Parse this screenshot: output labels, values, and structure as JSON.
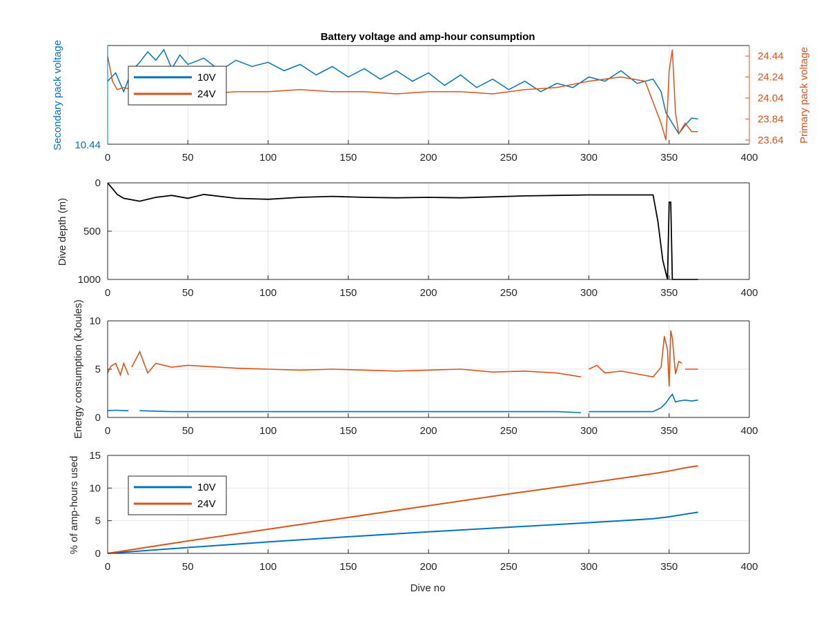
{
  "colors": {
    "blue": "#0072BD",
    "orange": "#D95319",
    "black": "#000000",
    "grid": "#e6e6e6"
  },
  "chart_data": [
    {
      "type": "line",
      "title": "Battery voltage and amp-hour consumption",
      "xlabel": "",
      "ylabel_left": "Secondary pack voltage",
      "ylabel_right": "Primary pack voltage",
      "xlim": [
        0,
        400
      ],
      "xticks": [
        "0",
        "50",
        "100",
        "150",
        "200",
        "250",
        "300",
        "350",
        "400"
      ],
      "yticks_left": [
        "10.44"
      ],
      "yticks_right": [
        "23.64",
        "23.84",
        "24.04",
        "24.24",
        "24.44"
      ],
      "ylim_right": [
        23.6,
        24.54
      ],
      "legend": {
        "position": "top-left",
        "entries": [
          "10V",
          "24V"
        ]
      },
      "series": [
        {
          "name": "10V",
          "axis": "left",
          "x": [
            0,
            5,
            10,
            15,
            20,
            25,
            30,
            35,
            40,
            45,
            50,
            60,
            70,
            80,
            90,
            100,
            110,
            120,
            130,
            140,
            150,
            160,
            170,
            180,
            190,
            200,
            210,
            220,
            230,
            240,
            250,
            260,
            270,
            280,
            290,
            300,
            310,
            320,
            330,
            340,
            345,
            348,
            352,
            356,
            360,
            364,
            368
          ],
          "y": [
            24.2,
            24.28,
            24.1,
            24.3,
            24.38,
            24.48,
            24.4,
            24.5,
            24.32,
            24.45,
            24.36,
            24.42,
            24.3,
            24.4,
            24.34,
            24.38,
            24.3,
            24.36,
            24.26,
            24.34,
            24.24,
            24.32,
            24.22,
            24.3,
            24.2,
            24.28,
            24.16,
            24.26,
            24.14,
            24.22,
            24.12,
            24.2,
            24.1,
            24.18,
            24.14,
            24.24,
            24.2,
            24.3,
            24.18,
            24.22,
            24.1,
            23.9,
            23.8,
            23.7,
            23.78,
            23.85,
            23.84
          ]
        },
        {
          "name": "24V",
          "axis": "right",
          "x": [
            0,
            3,
            6,
            10,
            20,
            40,
            60,
            80,
            100,
            120,
            140,
            160,
            180,
            200,
            220,
            240,
            260,
            280,
            300,
            320,
            335,
            340,
            345,
            348,
            350,
            352,
            354,
            356,
            360,
            364,
            368
          ],
          "y": [
            24.44,
            24.2,
            24.12,
            24.14,
            24.1,
            24.1,
            24.08,
            24.1,
            24.1,
            24.12,
            24.1,
            24.1,
            24.08,
            24.1,
            24.1,
            24.08,
            24.12,
            24.14,
            24.2,
            24.24,
            24.2,
            24.0,
            23.8,
            23.64,
            24.3,
            24.5,
            23.9,
            23.7,
            23.8,
            23.72,
            23.72
          ]
        }
      ]
    },
    {
      "type": "line",
      "title": "",
      "xlabel": "",
      "ylabel": "Dive depth (m)",
      "xlim": [
        0,
        400
      ],
      "ylim": [
        0,
        1000
      ],
      "y_reversed": true,
      "xticks": [
        "0",
        "50",
        "100",
        "150",
        "200",
        "250",
        "300",
        "350",
        "400"
      ],
      "yticks": [
        "0",
        "500",
        "1000"
      ],
      "series": [
        {
          "name": "",
          "x": [
            0,
            3,
            6,
            10,
            20,
            30,
            40,
            50,
            60,
            80,
            100,
            120,
            140,
            160,
            180,
            200,
            220,
            240,
            260,
            280,
            300,
            320,
            340,
            343,
            346,
            349,
            350,
            351,
            352,
            353,
            354,
            356,
            360,
            368
          ],
          "y": [
            0,
            60,
            120,
            160,
            190,
            150,
            130,
            160,
            120,
            160,
            170,
            150,
            140,
            150,
            155,
            150,
            155,
            145,
            135,
            130,
            125,
            125,
            125,
            400,
            800,
            1000,
            200,
            200,
            1000,
            1000,
            1000,
            1000,
            1000,
            1000
          ]
        }
      ]
    },
    {
      "type": "line",
      "title": "",
      "xlabel": "",
      "ylabel": "Energy consumption (kJoules)",
      "xlim": [
        0,
        400
      ],
      "ylim": [
        0,
        10
      ],
      "xticks": [
        "0",
        "50",
        "100",
        "150",
        "200",
        "250",
        "300",
        "350",
        "400"
      ],
      "yticks": [
        "0",
        "5",
        "10"
      ],
      "series": [
        {
          "name": "",
          "color": "orange",
          "x": [
            0,
            2,
            5,
            8,
            10,
            13,
            15,
            20,
            25,
            30,
            40,
            50,
            60,
            70,
            80,
            100,
            120,
            140,
            160,
            180,
            200,
            220,
            240,
            260,
            280,
            295,
            300,
            305,
            310,
            320,
            330,
            340,
            345,
            347,
            349,
            350,
            351,
            352,
            354,
            356,
            358,
            360,
            362,
            365,
            368
          ],
          "y": [
            4.6,
            5.3,
            5.6,
            4.4,
            5.6,
            4.4,
            5.2,
            6.8,
            4.6,
            5.6,
            5.2,
            5.4,
            5.3,
            5.2,
            5.1,
            5.0,
            4.9,
            5.0,
            4.9,
            4.8,
            4.9,
            5.0,
            4.7,
            4.8,
            4.6,
            4.2,
            5.0,
            5.4,
            4.6,
            4.8,
            4.5,
            4.2,
            5.2,
            8.4,
            7.0,
            3.2,
            9.0,
            8.2,
            4.5,
            5.8,
            5.6,
            5.0,
            5.0,
            5.0,
            5.0
          ],
          "gap_after_x": [
            13,
            295,
            358
          ]
        },
        {
          "name": "",
          "color": "blue",
          "x": [
            0,
            5,
            10,
            13,
            20,
            40,
            60,
            80,
            100,
            120,
            140,
            160,
            180,
            200,
            220,
            240,
            260,
            280,
            295,
            300,
            320,
            340,
            345,
            348,
            350,
            352,
            354,
            356,
            360,
            364,
            368
          ],
          "y": [
            0.7,
            0.75,
            0.7,
            0.7,
            0.7,
            0.6,
            0.6,
            0.6,
            0.6,
            0.6,
            0.6,
            0.6,
            0.6,
            0.6,
            0.6,
            0.6,
            0.6,
            0.6,
            0.5,
            0.6,
            0.6,
            0.6,
            1.0,
            1.5,
            2.0,
            2.4,
            1.6,
            1.7,
            1.8,
            1.7,
            1.8
          ],
          "gap_after_x": [
            13,
            295
          ]
        }
      ]
    },
    {
      "type": "line",
      "title": "",
      "xlabel": "Dive no",
      "ylabel": "% of amp-hours used",
      "xlim": [
        0,
        400
      ],
      "ylim": [
        0,
        15
      ],
      "xticks": [
        "0",
        "50",
        "100",
        "150",
        "200",
        "250",
        "300",
        "350",
        "400"
      ],
      "yticks": [
        "0",
        "5",
        "10",
        "15"
      ],
      "legend": {
        "position": "top-left",
        "entries": [
          "10V",
          "24V"
        ]
      },
      "series": [
        {
          "name": "10V",
          "x": [
            0,
            50,
            100,
            150,
            200,
            250,
            300,
            340,
            350,
            360,
            368
          ],
          "y": [
            0,
            0.9,
            1.75,
            2.55,
            3.3,
            4.0,
            4.7,
            5.3,
            5.6,
            6.0,
            6.3
          ]
        },
        {
          "name": "24V",
          "x": [
            0,
            50,
            100,
            150,
            200,
            250,
            300,
            340,
            350,
            360,
            368
          ],
          "y": [
            0,
            1.9,
            3.7,
            5.5,
            7.3,
            9.1,
            10.8,
            12.2,
            12.6,
            13.1,
            13.4
          ]
        }
      ]
    }
  ]
}
